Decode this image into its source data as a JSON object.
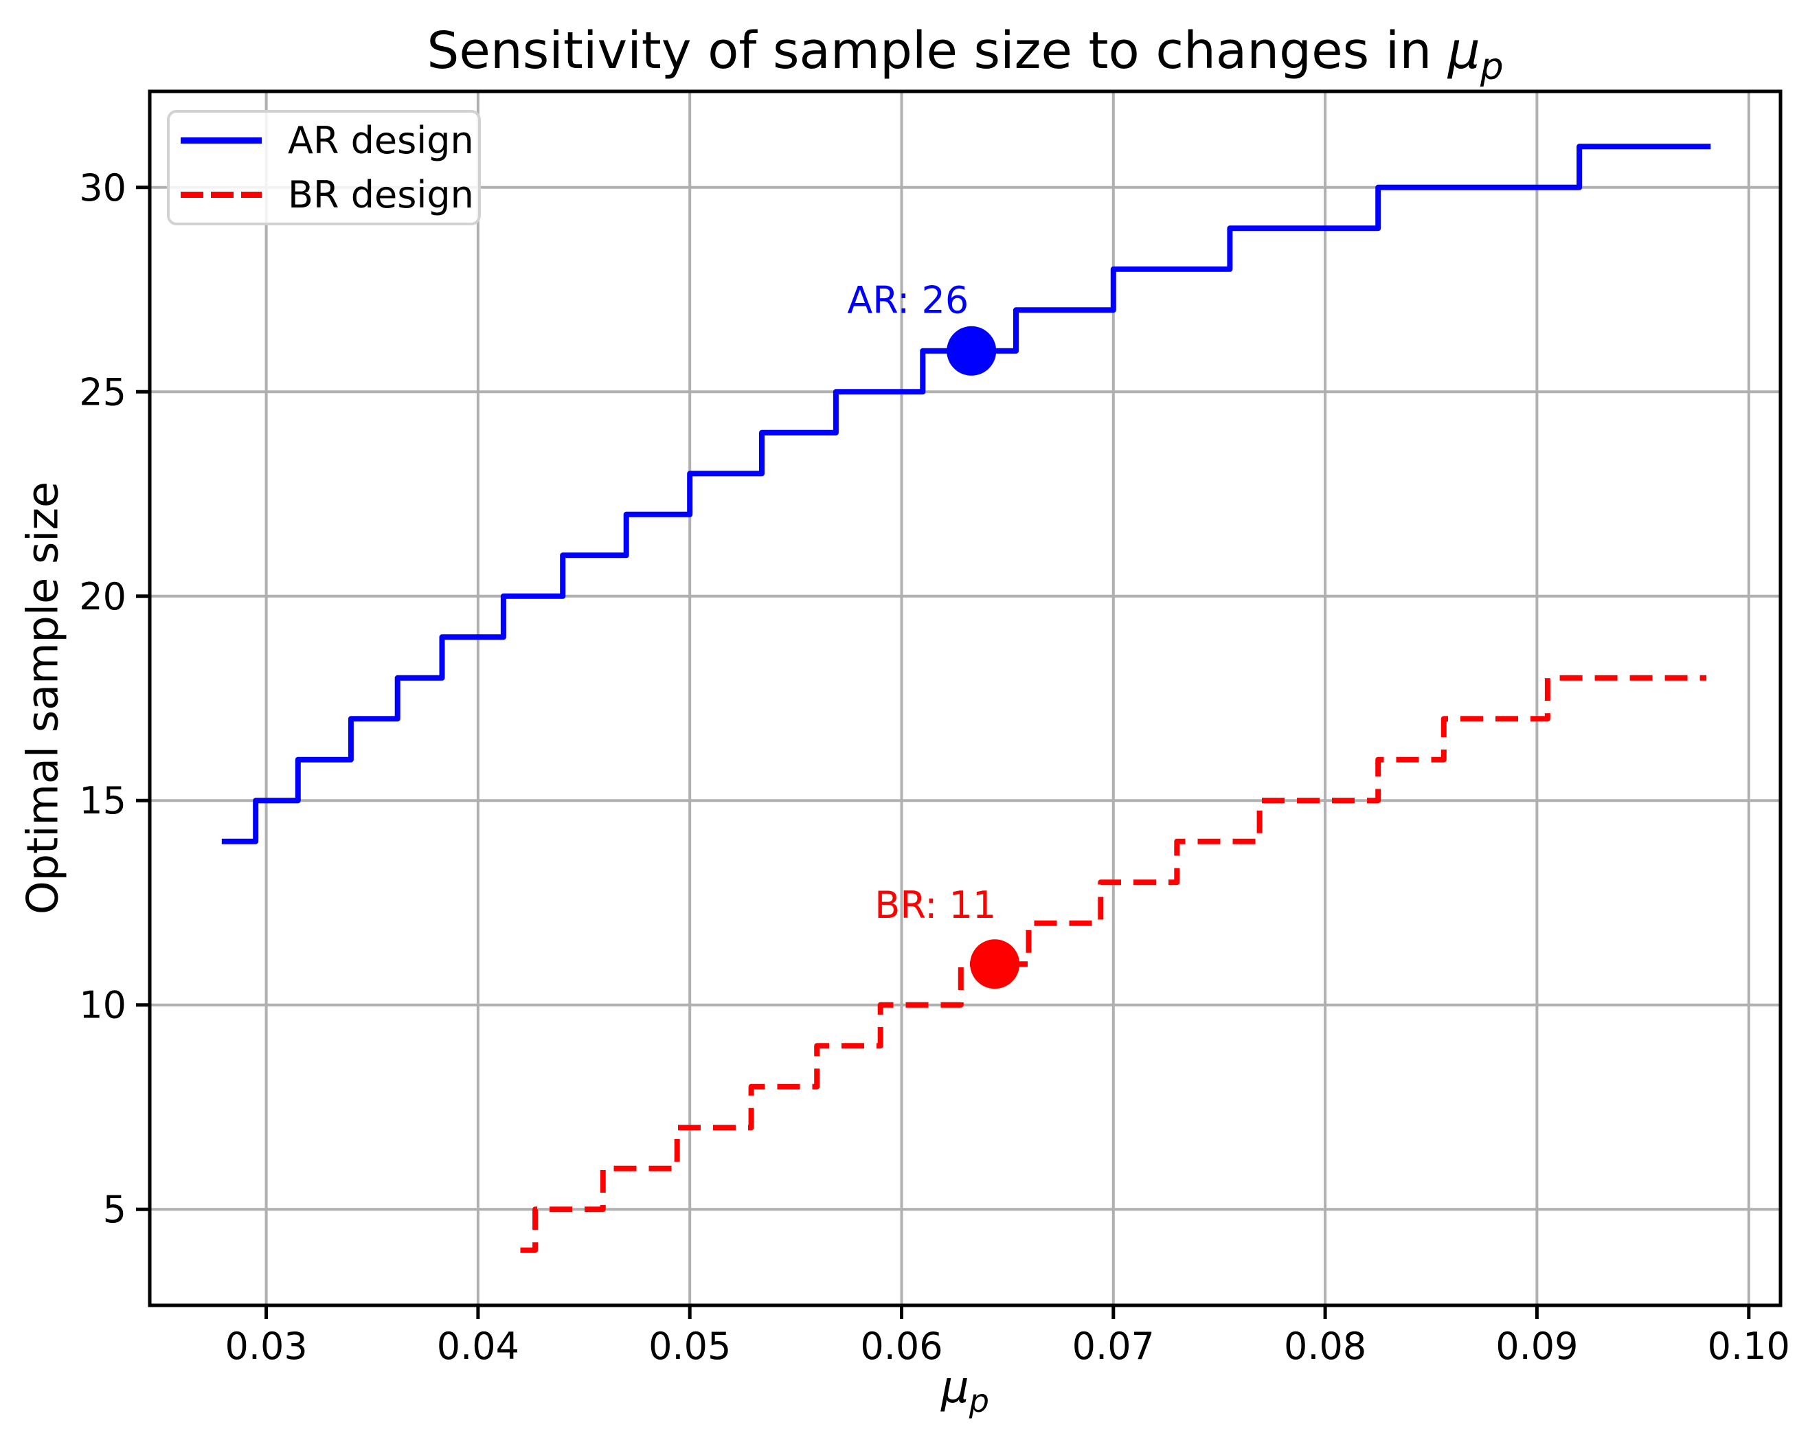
{
  "figure": {
    "title_prefix": "Sensitivity of sample size to changes in ",
    "mu": "μ",
    "mu_sub": "p",
    "ylabel": "Optimal sample size",
    "background_color": "#ffffff",
    "text_color": "#000000"
  },
  "chart_data": {
    "type": "line",
    "subtype": "step-post",
    "title": "Sensitivity of sample size to changes in μ_p",
    "xlabel": "μ_p",
    "ylabel": "Optimal sample size",
    "xlim": [
      0.0245,
      0.1015
    ],
    "ylim": [
      2.65,
      32.35
    ],
    "grid": true,
    "grid_color": "#b0b0b0",
    "frame_color": "#000000",
    "legend_position": "upper left",
    "x_tick_values": [
      0.03,
      0.04,
      0.05,
      0.06,
      0.07,
      0.08,
      0.09,
      0.1
    ],
    "x_tick_labels": [
      "0.03",
      "0.04",
      "0.05",
      "0.06",
      "0.07",
      "0.08",
      "0.09",
      "0.10"
    ],
    "y_tick_values": [
      5,
      10,
      15,
      20,
      25,
      30
    ],
    "y_tick_labels": [
      "5",
      "10",
      "15",
      "20",
      "25",
      "30"
    ],
    "series": [
      {
        "name": "AR design",
        "color": "#0000ff",
        "line_style": "solid",
        "line_width": 8,
        "start": {
          "x": 0.0279,
          "y": 14
        },
        "steps": [
          [
            0.0295,
            15
          ],
          [
            0.0315,
            16
          ],
          [
            0.034,
            17
          ],
          [
            0.0362,
            18
          ],
          [
            0.0383,
            19
          ],
          [
            0.0412,
            20
          ],
          [
            0.044,
            21
          ],
          [
            0.047,
            22
          ],
          [
            0.05,
            23
          ],
          [
            0.0534,
            24
          ],
          [
            0.0569,
            25
          ],
          [
            0.061,
            26
          ],
          [
            0.0654,
            27
          ],
          [
            0.07,
            28
          ],
          [
            0.0755,
            29
          ],
          [
            0.0825,
            30
          ],
          [
            0.092,
            31
          ]
        ],
        "end_x": 0.0982
      },
      {
        "name": "BR design",
        "color": "#ff0000",
        "line_style": "dashed",
        "line_width": 8,
        "start": {
          "x": 0.042,
          "y": 4
        },
        "steps": [
          [
            0.0427,
            5
          ],
          [
            0.0459,
            6
          ],
          [
            0.0494,
            7
          ],
          [
            0.0529,
            8
          ],
          [
            0.056,
            9
          ],
          [
            0.059,
            10
          ],
          [
            0.0628,
            11
          ],
          [
            0.066,
            12
          ],
          [
            0.0694,
            13
          ],
          [
            0.073,
            14
          ],
          [
            0.0769,
            15
          ],
          [
            0.0825,
            16
          ],
          [
            0.0856,
            17
          ],
          [
            0.0905,
            18
          ]
        ],
        "end_x": 0.098
      }
    ],
    "annotations": [
      {
        "text": "AR: 26",
        "marker_x": 0.0633,
        "marker_y": 26,
        "text_x": 0.0603,
        "text_y": 27.25,
        "color": "#0000ff",
        "marker_radius": 36
      },
      {
        "text": "BR: 11",
        "marker_x": 0.0644,
        "marker_y": 11,
        "text_x": 0.0616,
        "text_y": 12.45,
        "color": "#ff0000",
        "marker_radius": 36
      }
    ]
  }
}
